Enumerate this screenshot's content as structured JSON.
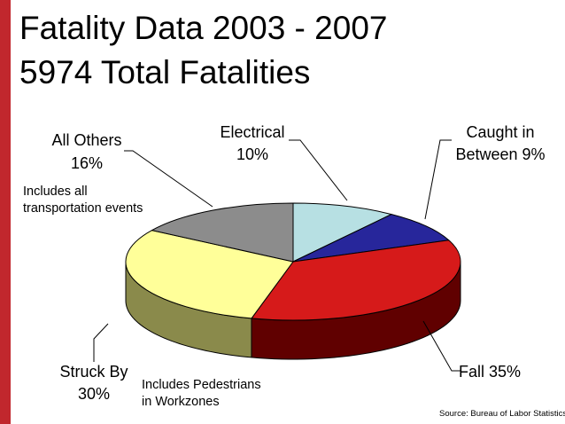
{
  "title": "Fatality Data 2003 - 2007",
  "subtitle": "5974 Total Fatalities",
  "colors": {
    "sidebar": "#c1272d"
  },
  "chart_data": {
    "type": "pie",
    "style": "3d",
    "slices": [
      {
        "name": "Electrical",
        "value": 10,
        "label": "10%",
        "color": "#b7e0e3",
        "side": "#8fb8bb"
      },
      {
        "name": "Caught in Between",
        "value": 9,
        "label": "Between 9%",
        "color": "#27269b",
        "side": "#151466"
      },
      {
        "name": "Fall",
        "value": 35,
        "label": "Fall 35%",
        "color": "#d61a1a",
        "side": "#600000"
      },
      {
        "name": "Struck By",
        "value": 30,
        "label": "30%",
        "color": "#ffff99",
        "side": "#8a8a4b"
      },
      {
        "name": "All Others",
        "value": 16,
        "label": "16%",
        "color": "#8c8c8c",
        "side": "#555555"
      }
    ],
    "labels": {
      "electrical_name": "Electrical",
      "electrical_pct": "10%",
      "caught_name": "Caught in",
      "caught_pct": "Between 9%",
      "fall": "Fall 35%",
      "struck_name": "Struck By",
      "struck_pct": "30%",
      "others_name": "All Others",
      "others_pct": "16%"
    },
    "annotations": {
      "others_note_1": "Includes all",
      "others_note_2": "transportation events",
      "struck_note_1": "Includes Pedestrians",
      "struck_note_2": "in Workzones"
    },
    "source": "Source:  Bureau of Labor Statistics"
  }
}
